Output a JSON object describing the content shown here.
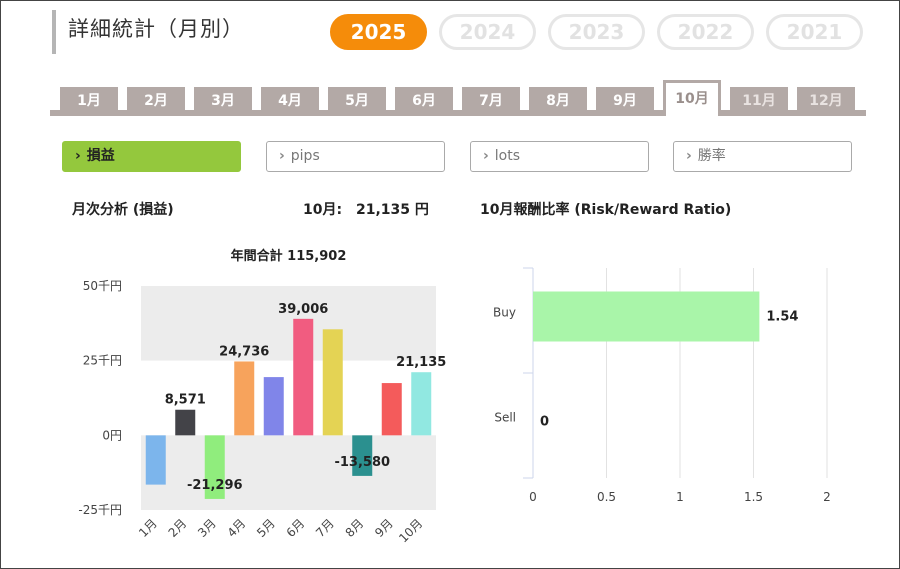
{
  "page": {
    "title": "詳細統計（月別）"
  },
  "years": [
    {
      "label": "2025",
      "active": true
    },
    {
      "label": "2024",
      "active": false
    },
    {
      "label": "2023",
      "active": false
    },
    {
      "label": "2022",
      "active": false
    },
    {
      "label": "2021",
      "active": false
    }
  ],
  "months": [
    {
      "label": "1月",
      "state": "normal"
    },
    {
      "label": "2月",
      "state": "normal"
    },
    {
      "label": "3月",
      "state": "normal"
    },
    {
      "label": "4月",
      "state": "normal"
    },
    {
      "label": "5月",
      "state": "normal"
    },
    {
      "label": "6月",
      "state": "normal"
    },
    {
      "label": "7月",
      "state": "normal"
    },
    {
      "label": "8月",
      "state": "normal"
    },
    {
      "label": "9月",
      "state": "normal"
    },
    {
      "label": "10月",
      "state": "active"
    },
    {
      "label": "11月",
      "state": "future"
    },
    {
      "label": "12月",
      "state": "future"
    }
  ],
  "filters": [
    {
      "label": "損益",
      "active": true,
      "icon": "chevron-right-icon"
    },
    {
      "label": "pips",
      "active": false,
      "icon": "chevron-right-icon"
    },
    {
      "label": "lots",
      "active": false,
      "icon": "chevron-right-icon"
    },
    {
      "label": "勝率",
      "active": false,
      "icon": "chevron-right-icon"
    }
  ],
  "summary": {
    "analysis_label": "月次分析 (損益)",
    "month_label": "10月:",
    "month_value": "21,135 円",
    "rr_label": "10月報酬比率 (Risk/Reward Ratio)"
  },
  "colors": {
    "accent_orange": "#f58c0a",
    "accent_green": "#94c83d",
    "tab_gray": "#b3a9a6",
    "rr_bar": "#a9f5a9"
  },
  "chart_data": [
    {
      "type": "bar",
      "title": "年間合計 115,902",
      "categories": [
        "1月",
        "2月",
        "3月",
        "4月",
        "5月",
        "6月",
        "7月",
        "8月",
        "9月",
        "10月"
      ],
      "values": [
        -16500,
        8571,
        -21296,
        24736,
        19500,
        39006,
        35500,
        -13580,
        17500,
        21135
      ],
      "data_labels": [
        "",
        "8,571",
        "-21,296",
        "24,736",
        "",
        "39,006",
        "",
        "-13,580",
        "",
        "21,135"
      ],
      "colors": [
        "#7cb5ec",
        "#434348",
        "#90ed7d",
        "#f7a35c",
        "#8085e9",
        "#f15c80",
        "#e4d354",
        "#2b908f",
        "#f45b5b",
        "#91e8e1"
      ],
      "ylim": [
        -25000,
        50000
      ],
      "yticks": [
        50000,
        25000,
        0,
        -25000
      ],
      "ytick_labels": [
        "50千円",
        "25千円",
        "0円",
        "-25千円"
      ],
      "xlabel": "",
      "ylabel": "",
      "grid": false
    },
    {
      "type": "bar",
      "orientation": "horizontal",
      "title": "10月報酬比率 (Risk/Reward Ratio)",
      "categories": [
        "Buy",
        "Sell"
      ],
      "values": [
        1.54,
        0
      ],
      "data_labels": [
        "1.54",
        "0"
      ],
      "colors": [
        "#a9f5a9",
        "#a9f5a9"
      ],
      "xlim": [
        0,
        2
      ],
      "xticks": [
        0,
        0.5,
        1,
        1.5,
        2
      ],
      "xtick_labels": [
        "0",
        "0.5",
        "1",
        "1.5",
        "2"
      ],
      "grid": true
    }
  ]
}
